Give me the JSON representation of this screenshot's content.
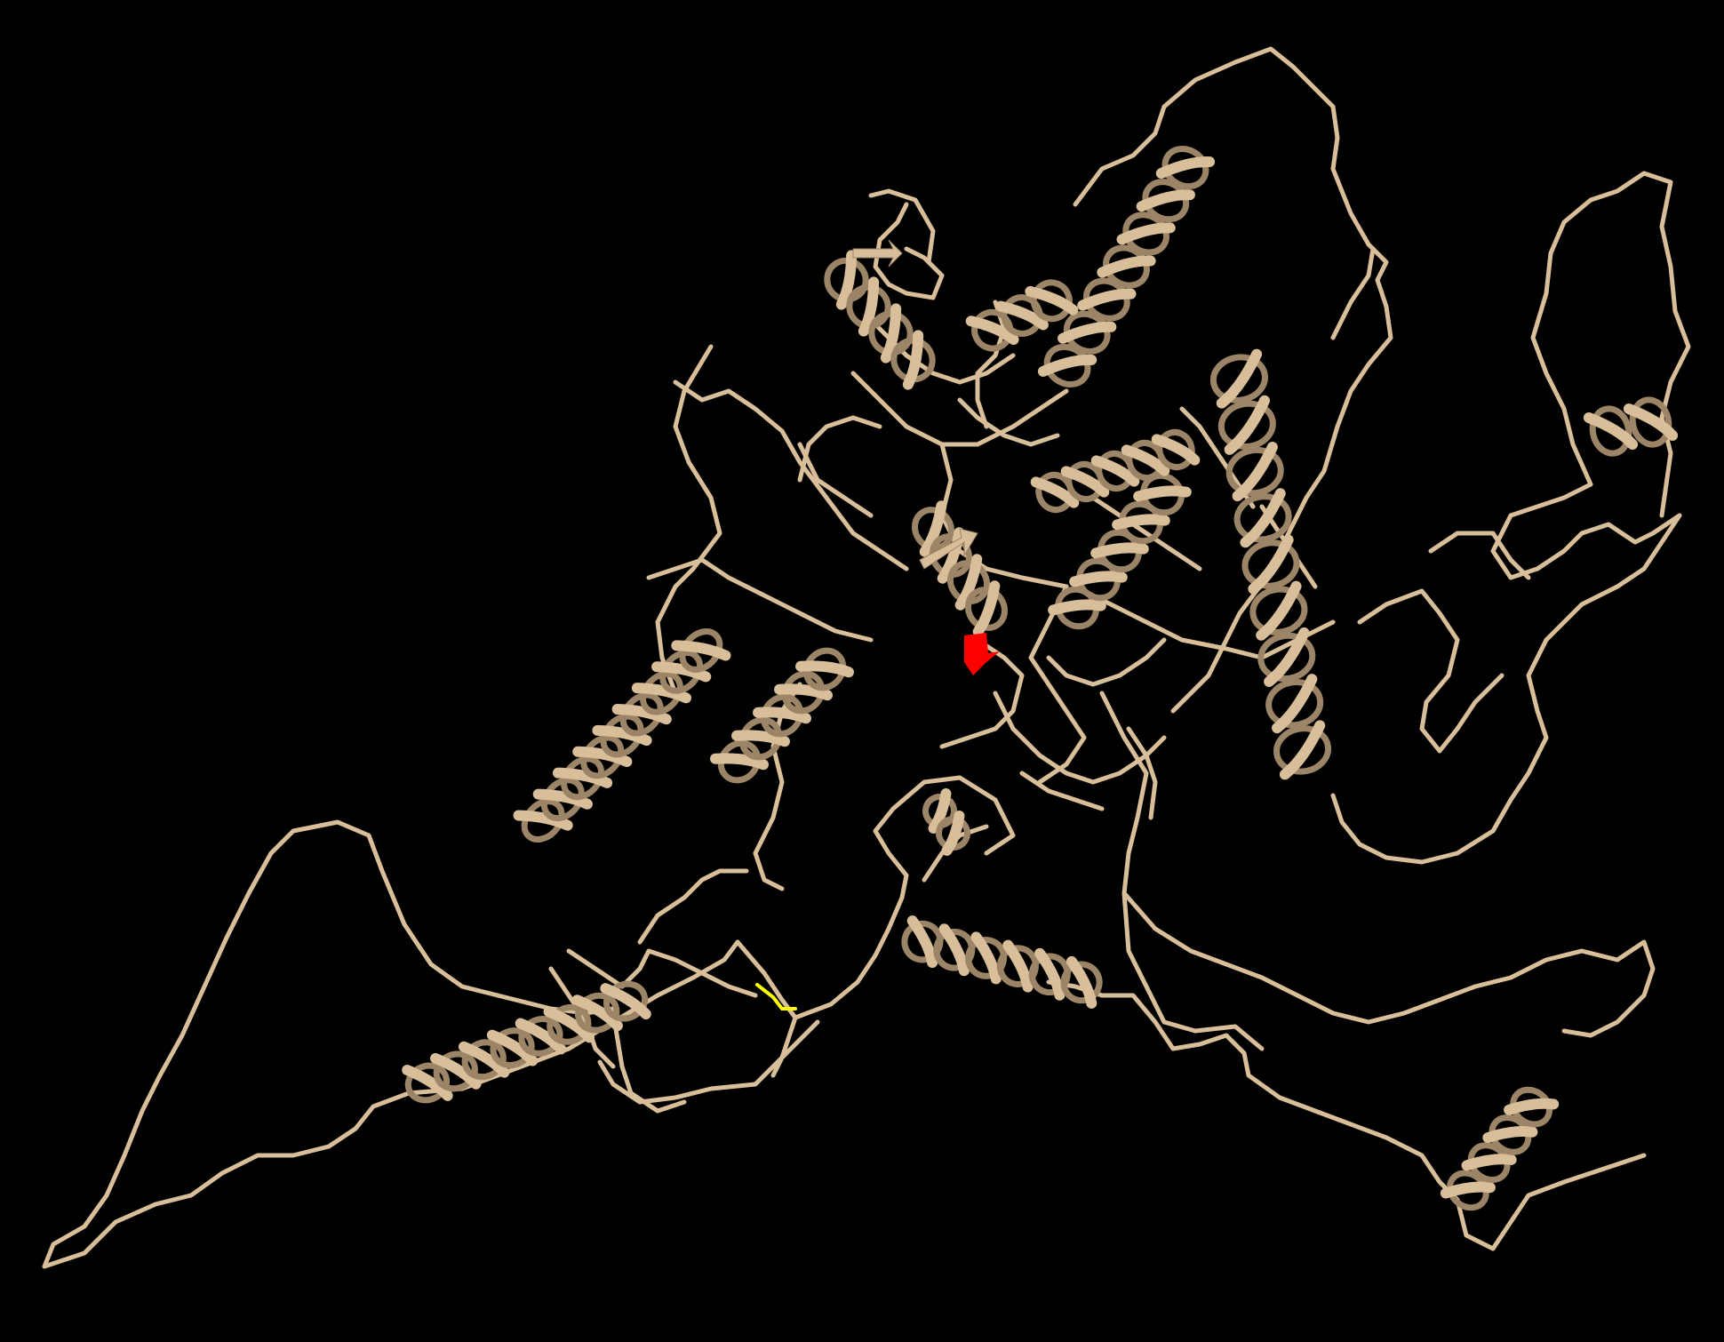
{
  "scene": {
    "subject": "protein-ribbon-structure",
    "background_color": "#000000",
    "ribbon_color": "#d9bf99",
    "ribbon_shadow_color": "#9c8566",
    "highlight_red_color": "#ff0000",
    "highlight_yellow_color": "#ffff00"
  }
}
